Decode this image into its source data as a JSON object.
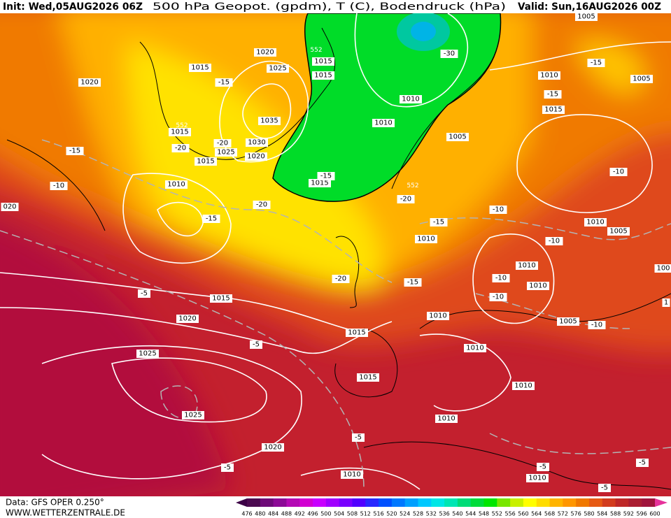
{
  "header": {
    "init": "Init: Wed,05AUG2026 06Z",
    "title": "500 hPa Geopot. (gpdm), T (C), Bodendruck (hPa)",
    "valid": "Valid: Sun,16AUG2026 00Z"
  },
  "footer": {
    "data": "Data: GFS OPER 0.250°",
    "site": "WWW.WETTERZENTRALE.DE"
  },
  "legend": {
    "ticks": [
      476,
      480,
      484,
      488,
      492,
      496,
      500,
      504,
      508,
      512,
      516,
      520,
      524,
      528,
      532,
      536,
      540,
      544,
      548,
      552,
      556,
      560,
      564,
      568,
      572,
      576,
      580,
      584,
      588,
      592,
      596,
      600
    ],
    "colors": [
      "#4b0a50",
      "#6e0a78",
      "#8c0a96",
      "#b40ab4",
      "#d200d2",
      "#c800ff",
      "#a000ff",
      "#7800ff",
      "#5000ff",
      "#2828ff",
      "#0050ff",
      "#0078ff",
      "#00a0ff",
      "#00c8ff",
      "#00e6e6",
      "#00e6b4",
      "#00dc78",
      "#00dc3c",
      "#00e600",
      "#78e600",
      "#c8f000",
      "#ffff00",
      "#ffdc00",
      "#ffb400",
      "#ff9600",
      "#f07800",
      "#e65a14",
      "#d23c1e",
      "#be2828",
      "#aa1e32",
      "#a0143c"
    ],
    "low_color": "#3c0046",
    "high_color": "#e6329b"
  },
  "map": {
    "isobar_labels": [
      "1015",
      "1020",
      "1020",
      "1025",
      "1015",
      "1015",
      "1035",
      "1030",
      "1025",
      "1020",
      "1015",
      "1015",
      "1010",
      "1010",
      "1010",
      "1005",
      "1015",
      "1010",
      "1005",
      "1005",
      "1015",
      "1010",
      "1005",
      "1010",
      "1010",
      "1010",
      "1010",
      "1005",
      "1015",
      "1010",
      "1015",
      "1020",
      "1025",
      "1015",
      "1010",
      "1025",
      "1010",
      "1020",
      "1010",
      "1010",
      "020",
      "100",
      "1"
    ],
    "geopotential_labels": [
      "552",
      "552",
      "552"
    ],
    "temperature_labels": [
      "-30",
      "-15",
      "-15",
      "-15",
      "-15",
      "-20",
      "-20",
      "-10",
      "-15",
      "-20",
      "-10",
      "-20",
      "-15",
      "-10",
      "-15",
      "-10",
      "-20",
      "-15",
      "-10",
      "-10",
      "-10",
      "-5",
      "-5",
      "-5",
      "-5",
      "-5",
      "-5",
      "-5"
    ]
  }
}
